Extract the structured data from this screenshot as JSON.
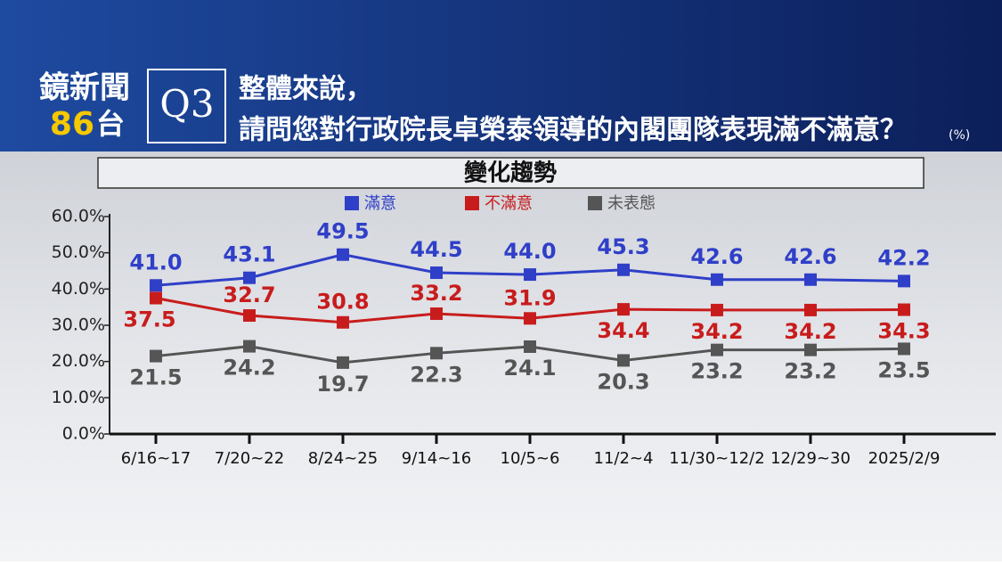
{
  "header": {
    "brand": "鏡新聞",
    "channel_number": "86",
    "channel_suffix": "台",
    "question_number": "Q3",
    "question_line1": "整體來說，",
    "question_line2": "請問您對行政院長卓榮泰領導的內閣團隊表現滿不滿意？",
    "unit": "(%)"
  },
  "chart_data": {
    "type": "line",
    "title": "變化趨勢",
    "categories": [
      "6/16~17",
      "7/20~22",
      "8/24~25",
      "9/14~16",
      "10/5~6",
      "11/2~4",
      "11/30~12/2",
      "12/29~30",
      "2025/2/9"
    ],
    "series": [
      {
        "name": "滿意",
        "color": "#2f3fc8",
        "values": [
          41.0,
          43.1,
          49.5,
          44.5,
          44.0,
          45.3,
          42.6,
          42.6,
          42.2
        ],
        "value_labels": [
          "41.0",
          "43.1",
          "49.5",
          "44.5",
          "44.0",
          "45.3",
          "42.6",
          "42.6",
          "42.2"
        ]
      },
      {
        "name": "不滿意",
        "color": "#c81c1c",
        "values": [
          37.5,
          32.7,
          30.8,
          33.2,
          31.9,
          34.4,
          34.2,
          34.2,
          34.3
        ],
        "value_labels": [
          "37.5",
          "32.7",
          "30.8",
          "33.2",
          "31.9",
          "34.4",
          "34.2",
          "34.2",
          "34.3"
        ]
      },
      {
        "name": "未表態",
        "color": "#555555",
        "values": [
          21.5,
          24.2,
          19.7,
          22.3,
          24.1,
          20.3,
          23.2,
          23.2,
          23.5
        ],
        "value_labels": [
          "21.5",
          "24.2",
          "19.7",
          "22.3",
          "24.1",
          "20.3",
          "23.2",
          "23.2",
          "23.5"
        ]
      }
    ],
    "ylim": [
      0,
      60
    ],
    "yticks": [
      {
        "value": 0,
        "label": "0.0%"
      },
      {
        "value": 10,
        "label": "10.0%"
      },
      {
        "value": 20,
        "label": "20.0%"
      },
      {
        "value": 30,
        "label": "30.0%"
      },
      {
        "value": 40,
        "label": "40.0%"
      },
      {
        "value": 50,
        "label": "50.0%"
      },
      {
        "value": 60,
        "label": "60.0%"
      }
    ]
  }
}
